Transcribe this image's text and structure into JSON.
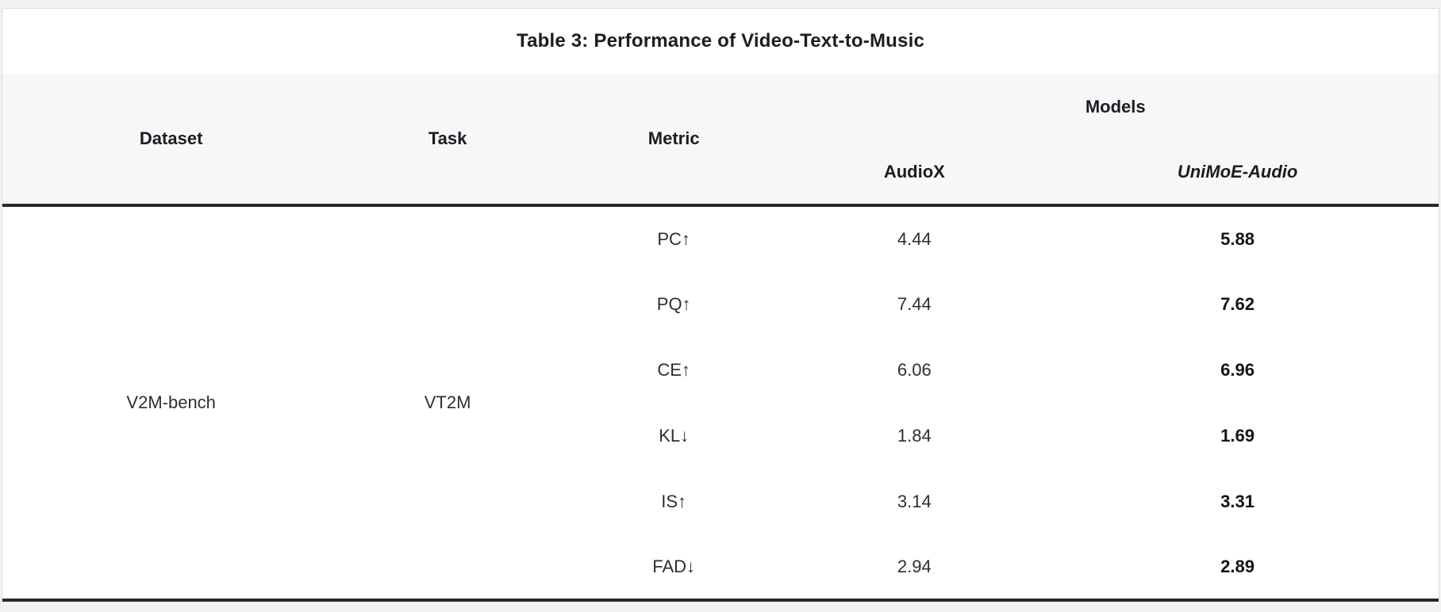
{
  "page": {
    "background": "#f1f2f4",
    "card_background": "#ffffff",
    "header_background": "#f6f7f9",
    "light_border_color": "#dadce0",
    "dark_rule_color": "#27292d"
  },
  "table": {
    "title": "Table 3: Performance of Video-Text-to-Music",
    "headers": {
      "dataset": "Dataset",
      "task": "Task",
      "metric": "Metric",
      "models_group": "Models",
      "model_a": "AudioX",
      "model_b": "UniMoE-Audio"
    },
    "dataset": "V2M-bench",
    "task": "VT2M",
    "rows": [
      {
        "metric": "PC↑",
        "audiox": "4.44",
        "unimoe": "5.88"
      },
      {
        "metric": "PQ↑",
        "audiox": "7.44",
        "unimoe": "7.62"
      },
      {
        "metric": "CE↑",
        "audiox": "6.06",
        "unimoe": "6.96"
      },
      {
        "metric": "KL↓",
        "audiox": "1.84",
        "unimoe": "1.69"
      },
      {
        "metric": "IS↑",
        "audiox": "3.14",
        "unimoe": "3.31"
      },
      {
        "metric": "FAD↓",
        "audiox": "2.94",
        "unimoe": "2.89"
      }
    ]
  },
  "chart_data": {
    "type": "table",
    "title": "Table 3: Performance of Video-Text-to-Music",
    "columns": [
      "Dataset",
      "Task",
      "Metric",
      "AudioX",
      "UniMoE-Audio"
    ],
    "rows": [
      [
        "V2M-bench",
        "VT2M",
        "PC↑",
        4.44,
        5.88
      ],
      [
        "V2M-bench",
        "VT2M",
        "PQ↑",
        7.44,
        7.62
      ],
      [
        "V2M-bench",
        "VT2M",
        "CE↑",
        6.06,
        6.96
      ],
      [
        "V2M-bench",
        "VT2M",
        "KL↓",
        1.84,
        1.69
      ],
      [
        "V2M-bench",
        "VT2M",
        "IS↑",
        3.14,
        3.31
      ],
      [
        "V2M-bench",
        "VT2M",
        "FAD↓",
        2.94,
        2.89
      ]
    ],
    "notes": "UniMoE-Audio column values are bold (best results); header group 'Models' spans AudioX and UniMoE-Audio"
  }
}
